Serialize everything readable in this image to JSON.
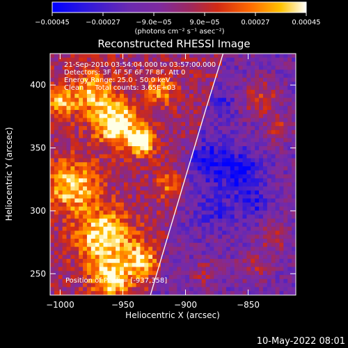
{
  "chart_data": {
    "type": "heatmap",
    "title": "Reconstructed RHESSI Image",
    "xlabel": "Heliocentric X (arcsec)",
    "ylabel": "Heliocentric Y (arcsec)",
    "xlim": [
      -1008,
      -812
    ],
    "ylim": [
      233,
      425
    ],
    "x_ticks": [
      -1000,
      -950,
      -900,
      -850
    ],
    "x_tick_labels": [
      "−1000",
      "−950",
      "−900",
      "−850"
    ],
    "y_ticks": [
      250,
      300,
      350,
      400
    ],
    "y_tick_labels": [
      "250",
      "300",
      "350",
      "400"
    ],
    "colorbar": {
      "range": [
        -0.00045,
        0.00045
      ],
      "ticks": [
        -0.00045,
        -0.00027,
        -9e-05,
        9e-05,
        0.00027,
        0.00045
      ],
      "tick_labels": [
        "−0.00045",
        "−0.00027",
        "−9.0e−05",
        "9.0e−05",
        "0.00027",
        "0.00045"
      ],
      "units": "(photons cm⁻² s⁻¹ asec⁻²)",
      "colormap": [
        "#0000ff",
        "#3a18d0",
        "#6a2ab0",
        "#7e2aa0",
        "#a0285a",
        "#c62a1e",
        "#ee3d00",
        "#ff7d00",
        "#ffc300",
        "#fffde0"
      ]
    },
    "annotations": [
      "21-Sep-2010 03:54:04.000 to 03:57:00.000",
      "Detectors: 3F 4F 5F 6F 7F 8F, Att 0",
      "Energy Range: 25.0 - 50.0 keV",
      "Clean     Total counts: 3.65E+03"
    ],
    "peak_label": "Position of Peak = [-937,358]",
    "limb_curve": [
      [
        -928,
        233
      ],
      [
        -914,
        280
      ],
      [
        -899,
        330
      ],
      [
        -884,
        380
      ],
      [
        -870,
        425
      ]
    ]
  },
  "footer": {
    "date": "10-May-2022 08:01"
  },
  "colors": {
    "background": "#000000",
    "text": "#ffffff",
    "limb": "#ffffff"
  }
}
